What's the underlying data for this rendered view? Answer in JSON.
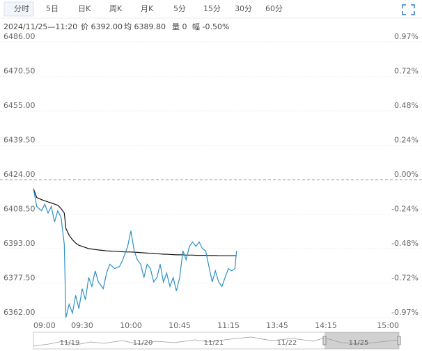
{
  "tabs": [
    "分时",
    "5日",
    "日K",
    "周K",
    "月K",
    "5分",
    "15分",
    "30分",
    "60分"
  ],
  "info": [
    "2024/11/25—11:20",
    "价 6392.00",
    "均 6389.80",
    "量 0",
    "幅 -0.50%"
  ],
  "chart_data": {
    "type": "line",
    "x": [
      "09:00",
      "09:02",
      "09:05",
      "09:07",
      "09:09",
      "09:11",
      "09:13",
      "09:15",
      "09:17",
      "09:19",
      "09:20",
      "09:22",
      "09:24",
      "09:26",
      "09:28",
      "09:30",
      "09:32",
      "09:34",
      "09:36",
      "09:38",
      "09:40",
      "09:43",
      "09:45",
      "09:47",
      "09:50",
      "09:53",
      "09:55",
      "09:58",
      "10:00",
      "10:02",
      "10:04",
      "10:06",
      "10:08",
      "10:10",
      "10:12",
      "10:14",
      "10:31",
      "10:33",
      "10:35",
      "10:37",
      "10:39",
      "10:41",
      "10:43",
      "10:45",
      "10:47",
      "10:49",
      "10:51",
      "10:53",
      "10:55",
      "10:57",
      "10:59",
      "11:01",
      "11:03",
      "11:05",
      "11:07",
      "11:09",
      "11:11",
      "11:13",
      "11:15",
      "11:17",
      "11:19",
      "11:20"
    ],
    "series": [
      {
        "color": "#2e8fc4",
        "values": [
          6420,
          6412,
          6410,
          6413,
          6409,
          6412,
          6405,
          6410,
          6407,
          6395,
          6362,
          6368,
          6364,
          6372,
          6366,
          6375,
          6370,
          6380,
          6376,
          6383,
          6378,
          6375,
          6382,
          6386,
          6384,
          6385,
          6388,
          6394,
          6401,
          6392,
          6388,
          6386,
          6380,
          6386,
          6384,
          6378,
          6380,
          6386,
          6378,
          6382,
          6376,
          6380,
          6374,
          6380,
          6392,
          6388,
          6394,
          6396,
          6394,
          6396,
          6393,
          6392,
          6385,
          6378,
          6383,
          6378,
          6376,
          6380,
          6384,
          6383,
          6384,
          6392
        ]
      },
      {
        "color": "#111111",
        "values": [
          6420,
          6416,
          6415,
          6414.5,
          6414,
          6413.5,
          6413,
          6412.5,
          6411,
          6409,
          6402,
          6399,
          6397,
          6395.5,
          6394.5,
          6394,
          6393.5,
          6393,
          6392.8,
          6392.6,
          6392.4,
          6392.2,
          6392,
          6391.9,
          6391.8,
          6391.7,
          6391.6,
          6391.5,
          6391.5,
          6391.4,
          6391.3,
          6391.2,
          6391.1,
          6391,
          6390.9,
          6390.8,
          6390.7,
          6390.6,
          6390.5,
          6390.5,
          6390.4,
          6390.3,
          6390.2,
          6390.2,
          6390.2,
          6390.1,
          6390.1,
          6390.1,
          6390,
          6390,
          6390,
          6390,
          6389.9,
          6389.9,
          6389.9,
          6389.8,
          6389.8,
          6389.8,
          6389.8,
          6389.8,
          6389.8,
          6389.8
        ]
      }
    ],
    "ylim": [
      6362,
      6486
    ],
    "yticks": [
      {
        "value": 6486,
        "label": "6486.00"
      },
      {
        "value": 6470.5,
        "label": "6470.50"
      },
      {
        "value": 6455,
        "label": "6455.00"
      },
      {
        "value": 6439.5,
        "label": "6439.50"
      },
      {
        "value": 6424,
        "label": "6424.00"
      },
      {
        "value": 6408.5,
        "label": "6408.50"
      },
      {
        "value": 6393,
        "label": "6393.00"
      },
      {
        "value": 6377.5,
        "label": "6377.50"
      },
      {
        "value": 6362,
        "label": "6362.00"
      }
    ],
    "y2lim": [
      -0.97,
      0.97
    ],
    "y2ticks": [
      {
        "value": 0.97,
        "label": "0.97%"
      },
      {
        "value": 0.72,
        "label": "0.72%"
      },
      {
        "value": 0.48,
        "label": "0.48%"
      },
      {
        "value": 0.24,
        "label": "0.24%"
      },
      {
        "value": 0,
        "label": "0.00%"
      },
      {
        "value": -0.24,
        "label": "-0.24%"
      },
      {
        "value": -0.48,
        "label": "-0.48%"
      },
      {
        "value": -0.72,
        "label": "-0.72%"
      },
      {
        "value": -0.97,
        "label": "-0.97%"
      }
    ],
    "xticks": [
      "09:00",
      "09:30",
      "10:00",
      "10:45",
      "11:15",
      "13:45",
      "14:15",
      "15:00"
    ],
    "up_color": "#e0302c",
    "down_color": "#1a9a3c",
    "flat_color": "#777777",
    "grid": true
  },
  "navigator": {
    "dates": [
      "11/19",
      "11/20",
      "11/21",
      "11/22",
      "11/25"
    ]
  }
}
